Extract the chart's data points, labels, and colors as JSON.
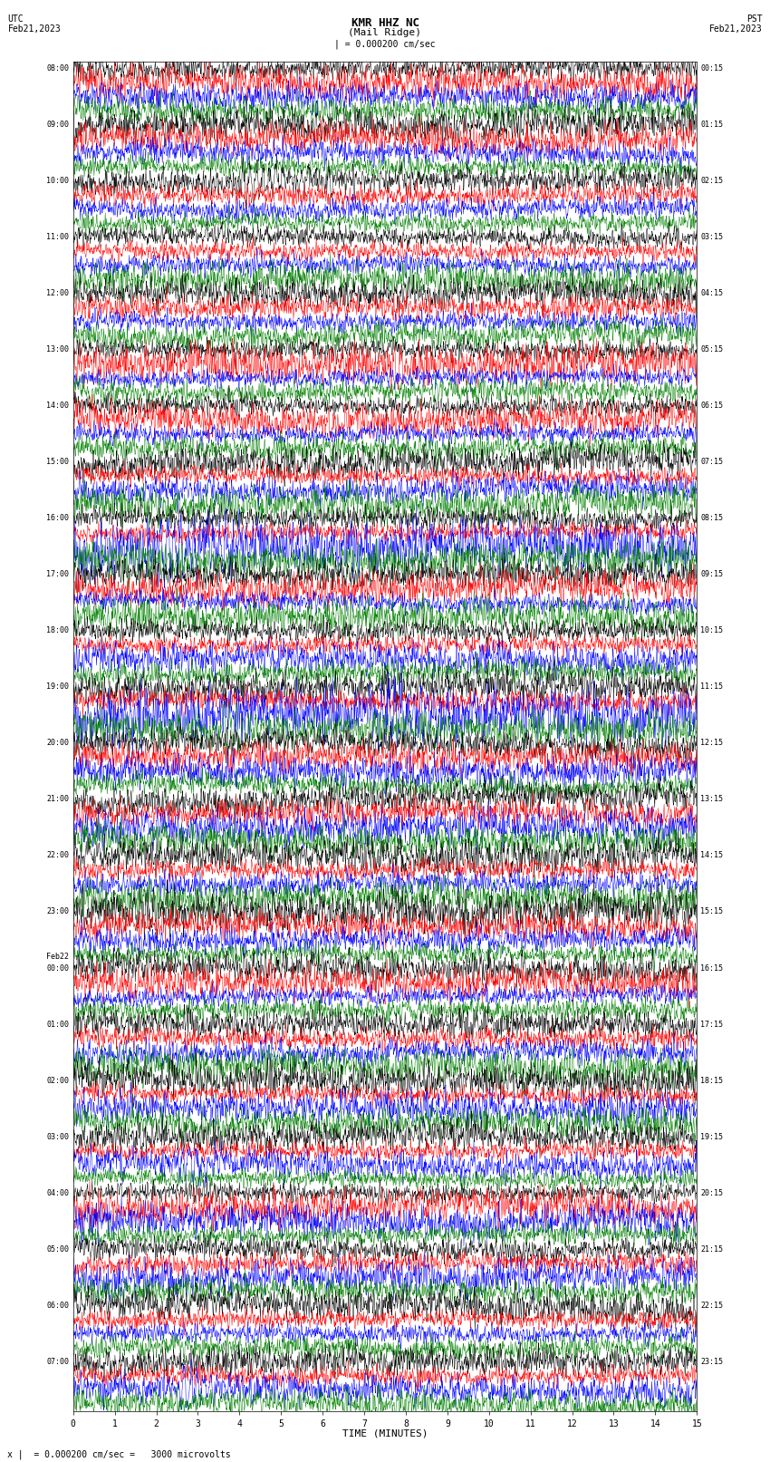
{
  "title_line1": "KMR HHZ NC",
  "title_line2": "(Mail Ridge)",
  "scale_text": "| = 0.000200 cm/sec",
  "left_label": "UTC",
  "left_date": "Feb21,2023",
  "right_label": "PST",
  "right_date": "Feb21,2023",
  "xlabel": "TIME (MINUTES)",
  "bottom_note": "x |  = 0.000200 cm/sec =   3000 microvolts",
  "xlim": [
    0,
    15
  ],
  "bg_color": "#ffffff",
  "trace_colors": [
    "#000000",
    "#ff0000",
    "#0000ff",
    "#008000"
  ],
  "utc_labels": [
    [
      "08:00",
      0
    ],
    [
      "09:00",
      4
    ],
    [
      "10:00",
      8
    ],
    [
      "11:00",
      12
    ],
    [
      "12:00",
      16
    ],
    [
      "13:00",
      20
    ],
    [
      "14:00",
      24
    ],
    [
      "15:00",
      28
    ],
    [
      "16:00",
      32
    ],
    [
      "17:00",
      36
    ],
    [
      "18:00",
      40
    ],
    [
      "19:00",
      44
    ],
    [
      "20:00",
      48
    ],
    [
      "21:00",
      52
    ],
    [
      "22:00",
      56
    ],
    [
      "23:00",
      60
    ],
    [
      "Feb22",
      64
    ],
    [
      "00:00",
      64
    ],
    [
      "01:00",
      68
    ],
    [
      "02:00",
      72
    ],
    [
      "03:00",
      76
    ],
    [
      "04:00",
      80
    ],
    [
      "05:00",
      84
    ],
    [
      "06:00",
      88
    ],
    [
      "07:00",
      92
    ]
  ],
  "pst_labels": [
    [
      "00:15",
      0
    ],
    [
      "01:15",
      4
    ],
    [
      "02:15",
      8
    ],
    [
      "03:15",
      12
    ],
    [
      "04:15",
      16
    ],
    [
      "05:15",
      20
    ],
    [
      "06:15",
      24
    ],
    [
      "07:15",
      28
    ],
    [
      "08:15",
      32
    ],
    [
      "09:15",
      36
    ],
    [
      "10:15",
      40
    ],
    [
      "11:15",
      44
    ],
    [
      "12:15",
      48
    ],
    [
      "13:15",
      52
    ],
    [
      "14:15",
      56
    ],
    [
      "15:15",
      60
    ],
    [
      "16:15",
      64
    ],
    [
      "17:15",
      68
    ],
    [
      "18:15",
      72
    ],
    [
      "19:15",
      76
    ],
    [
      "20:15",
      80
    ],
    [
      "21:15",
      84
    ],
    [
      "22:15",
      88
    ],
    [
      "23:15",
      92
    ]
  ],
  "n_rows": 96,
  "n_cols": 2000,
  "noise_amplitude": 0.42,
  "font_size": 7,
  "xtick_labels": [
    "0",
    "1",
    "2",
    "3",
    "4",
    "5",
    "6",
    "7",
    "8",
    "9",
    "10",
    "11",
    "12",
    "13",
    "14",
    "15"
  ],
  "xtick_positions": [
    0,
    1,
    2,
    3,
    4,
    5,
    6,
    7,
    8,
    9,
    10,
    11,
    12,
    13,
    14,
    15
  ]
}
